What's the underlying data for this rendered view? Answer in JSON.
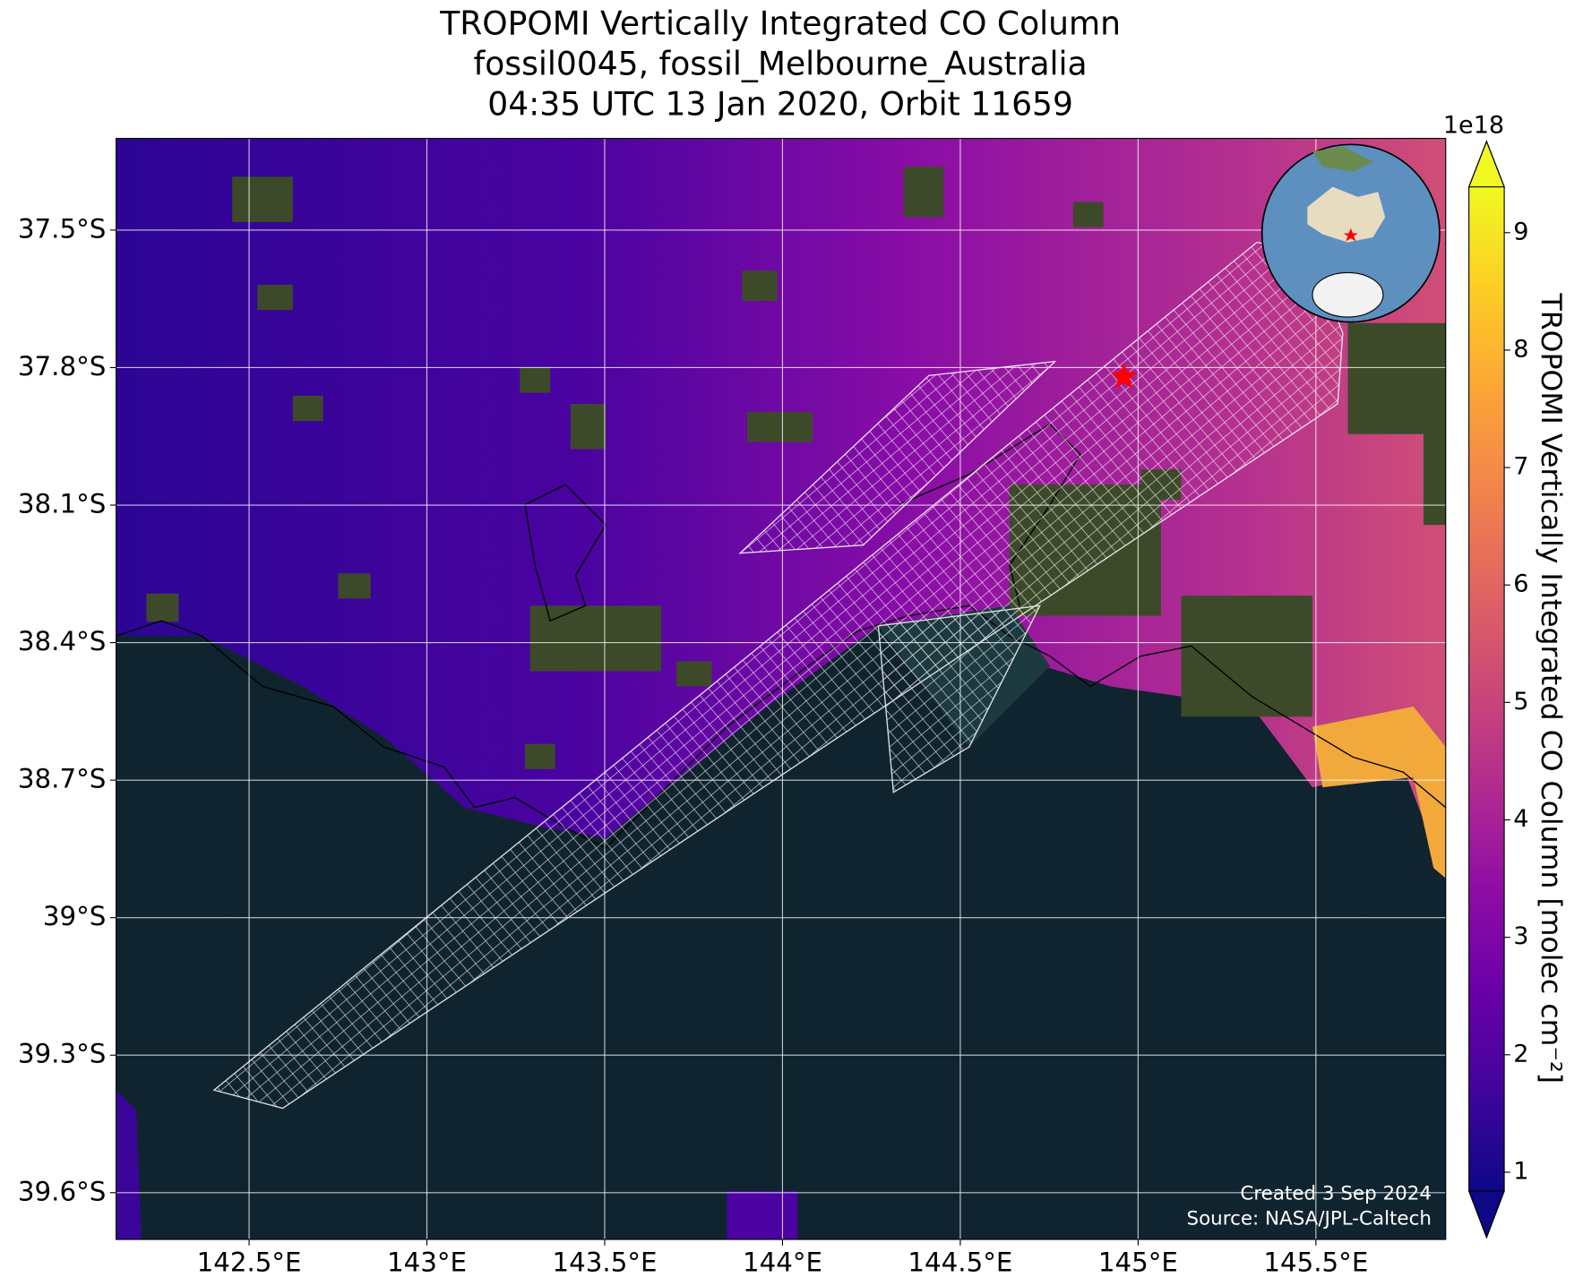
{
  "chart_data": {
    "type": "map",
    "title": [
      "TROPOMI Vertically Integrated CO Column",
      "fossil0045, fossil_Melbourne_Australia",
      "04:35 UTC 13 Jan 2020, Orbit 11659"
    ],
    "xlim": [
      142.126,
      145.865
    ],
    "ylim": [
      -39.702,
      -37.3
    ],
    "xticks": [
      {
        "value": 142.5,
        "label": "142.5°E"
      },
      {
        "value": 143,
        "label": "143°E"
      },
      {
        "value": 143.5,
        "label": "143.5°E"
      },
      {
        "value": 144,
        "label": "144°E"
      },
      {
        "value": 144.5,
        "label": "144.5°E"
      },
      {
        "value": 145,
        "label": "145°E"
      },
      {
        "value": 145.5,
        "label": "145.5°E"
      }
    ],
    "yticks": [
      {
        "value": -37.5,
        "label": "37.5°S"
      },
      {
        "value": -37.8,
        "label": "37.8°S"
      },
      {
        "value": -38.1,
        "label": "38.1°S"
      },
      {
        "value": -38.4,
        "label": "38.4°S"
      },
      {
        "value": -38.7,
        "label": "38.7°S"
      },
      {
        "value": -39,
        "label": "39°S"
      },
      {
        "value": -39.3,
        "label": "39.3°S"
      },
      {
        "value": -39.6,
        "label": "39.6°S"
      }
    ],
    "grid": true,
    "marker": {
      "x": 144.96,
      "y": -37.82,
      "color": "#ff0000"
    },
    "colorbar": {
      "label": "TROPOMI Vertically Integrated CO Column [molec cm⁻²]",
      "multiplier": "1e18",
      "clim": [
        0.84,
        9.39
      ],
      "ticks": [
        1,
        2,
        3,
        4,
        5,
        6,
        7,
        8,
        9
      ],
      "colormap": "plasma"
    },
    "annotations": [
      "Created 3 Sep 2024",
      "Source: NASA/JPL-Caltech"
    ]
  }
}
